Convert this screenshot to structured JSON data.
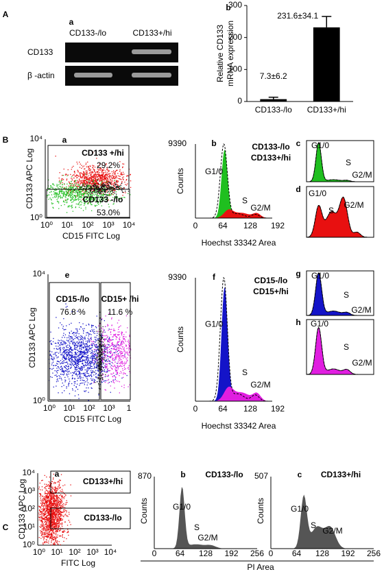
{
  "figure": {
    "A": {
      "label": "A",
      "a": {
        "label": "a",
        "lanes": [
          "CD133-/lo",
          "CD133+/hi"
        ],
        "rows": [
          "CD133",
          "β -actin"
        ]
      }
    },
    "B": {
      "label": "B",
      "a": {
        "label": "a",
        "ylabel": "CD133 APC Log",
        "xlabel": "CD15 FITC Log",
        "yticks": [
          "10⁴",
          "10⁰"
        ],
        "xticks": [
          "10⁰",
          "10¹",
          "10²",
          "10³",
          "10⁴"
        ],
        "gates": [
          {
            "name": "CD133 +/hi",
            "percent": "29.2%"
          },
          {
            "name": "CD133 -/lo",
            "percent": "53.0%"
          }
        ]
      },
      "b": {
        "label": "b",
        "ylabel": "Counts",
        "xlabel": "Hoechst 33342 Area",
        "ymax": "9390",
        "xticks": [
          "0",
          "64",
          "128",
          "192"
        ],
        "legend": [
          "CD133-/lo",
          "CD133+/hi"
        ],
        "phases": [
          "G1/0",
          "S",
          "G2/M"
        ]
      },
      "c": {
        "label": "c",
        "phases": [
          "G1/0",
          "S",
          "G2/M"
        ]
      },
      "d": {
        "label": "d",
        "phases": [
          "G1/0",
          "S",
          "G2/M"
        ]
      },
      "e": {
        "label": "e",
        "ylabel": "CD133 APC Log",
        "xlabel": "CD15 FITC Log",
        "yticks": [
          "10⁴",
          "10⁰"
        ],
        "xticks": [
          "10⁰",
          "10¹",
          "10²",
          "10³",
          "1"
        ],
        "gates": [
          {
            "name": "CD15-/lo",
            "percent": "76.8 %"
          },
          {
            "name": "CD15+ /hi",
            "percent": "11.6 %"
          }
        ]
      },
      "f": {
        "label": "f",
        "ylabel": "Counts",
        "xlabel": "Hoechst 33342 Area",
        "ymax": "9390",
        "xticks": [
          "0",
          "64",
          "128",
          "192"
        ],
        "legend": [
          "CD15-/lo",
          "CD15+/hi"
        ],
        "phases": [
          "G1/0",
          "S",
          "G2/M"
        ]
      },
      "g": {
        "label": "g",
        "phases": [
          "G1/0",
          "S",
          "G2/M"
        ]
      },
      "h": {
        "label": "h",
        "phases": [
          "G1/0",
          "S",
          "G2/M"
        ]
      }
    },
    "C": {
      "label": "C",
      "xlabel": "PI Area",
      "a": {
        "label": "a",
        "ylabel": "CD133 APC Log",
        "xlabel": "FITC Log",
        "yticks": [
          "10⁴",
          "10³",
          "10²",
          "10¹",
          "10⁰"
        ],
        "xticks": [
          "10⁰",
          "10¹",
          "10²",
          "10³",
          "10⁴"
        ],
        "gates": [
          "CD133+/hi",
          "CD133-/lo"
        ]
      },
      "b": {
        "label": "b",
        "title": "CD133-/lo",
        "ylabel": "Counts",
        "ymax": "870",
        "xticks": [
          "0",
          "64",
          "128",
          "192",
          "256"
        ],
        "phases": [
          "G1/0",
          "S",
          "G2/M"
        ]
      },
      "c": {
        "label": "c",
        "title": "CD133+/hi",
        "ylabel": "Counts",
        "ymax": "507",
        "xticks": [
          "0",
          "64",
          "128",
          "192",
          "256"
        ],
        "phases": [
          "G1/0",
          "S",
          "G2/M"
        ]
      }
    }
  },
  "chart_data": {
    "type": "bar",
    "label": "b",
    "ylabel": [
      "Relative CD133",
      "mRNA expression"
    ],
    "categories": [
      "CD133-/lo",
      "CD133+/hi"
    ],
    "values": [
      7.3,
      231.6
    ],
    "errors": [
      6.2,
      34.1
    ],
    "value_labels": [
      "7.3±6.2",
      "231.6±34.1"
    ],
    "color": "#000000",
    "ylim": [
      0,
      300
    ],
    "yticks": [
      0,
      100,
      200,
      300
    ]
  }
}
